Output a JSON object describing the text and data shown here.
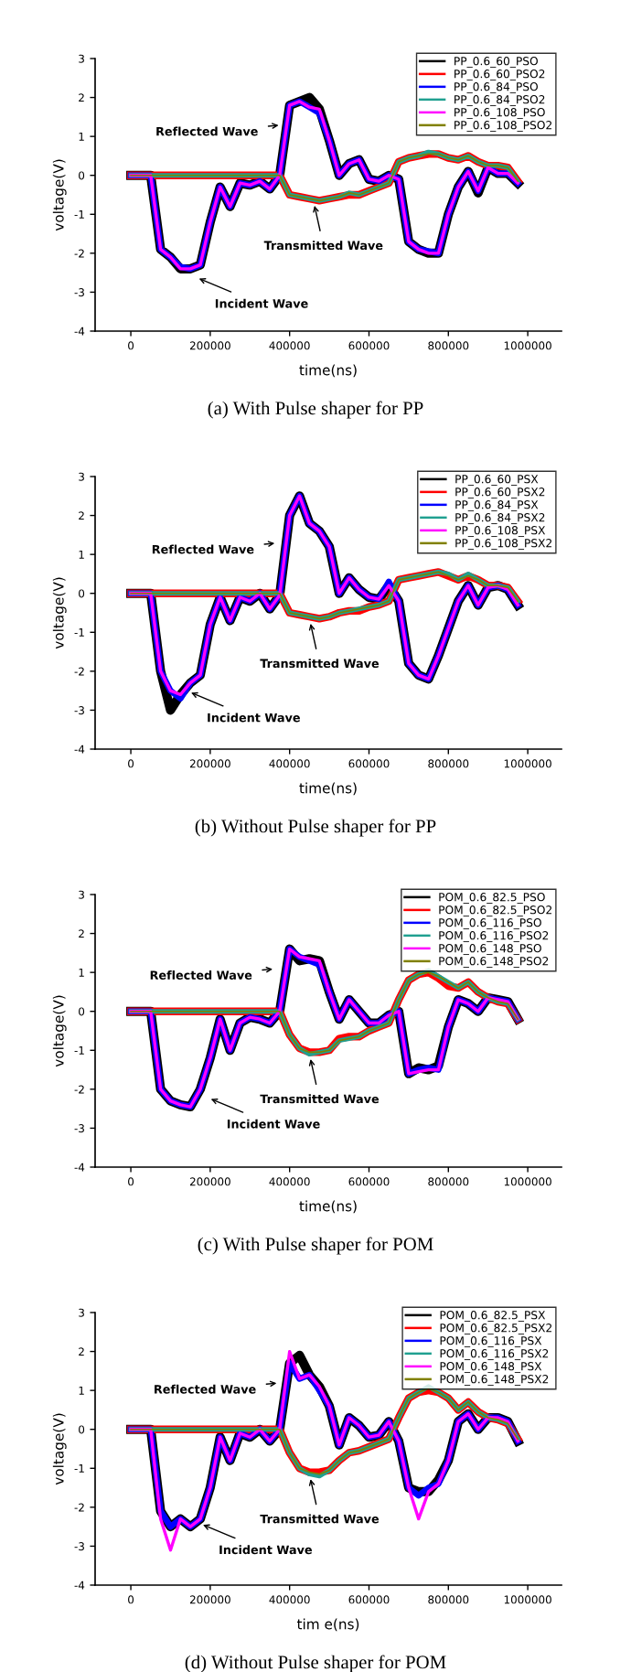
{
  "chart_data": [
    {
      "type": "line",
      "title": "(a) With Pulse shaper for PP",
      "xlabel": "time(ns)",
      "ylabel": "voltage(V)",
      "legend": "top right",
      "xlim": [
        -90000,
        1085000
      ],
      "ylim": [
        -4,
        3
      ],
      "xticks": [
        0,
        200000,
        400000,
        600000,
        800000,
        1000000
      ],
      "yticks": [
        -4,
        -3,
        -2,
        -1,
        0,
        1,
        2,
        3
      ],
      "x": [
        0,
        25000,
        50000,
        75000,
        100000,
        125000,
        150000,
        175000,
        200000,
        225000,
        250000,
        275000,
        300000,
        325000,
        350000,
        375000,
        400000,
        425000,
        450000,
        475000,
        500000,
        525000,
        550000,
        575000,
        600000,
        625000,
        650000,
        675000,
        700000,
        725000,
        750000,
        775000,
        800000,
        825000,
        850000,
        875000,
        900000,
        925000,
        950000,
        975000
      ],
      "annotations": [
        {
          "text": "Reflected Wave",
          "x": 385000,
          "y": 1.3
        },
        {
          "text": "Transmitted Wave",
          "x": 460000,
          "y": -0.65
        },
        {
          "text": "Incident Wave",
          "x": 160000,
          "y": -2.6
        }
      ],
      "series": [
        {
          "name": "PP_0.6_60_PSO",
          "color": "#000000",
          "values": [
            0,
            0,
            0,
            -1.9,
            -2.1,
            -2.4,
            -2.4,
            -2.3,
            -1.2,
            -0.3,
            -0.8,
            -0.2,
            -0.25,
            -0.15,
            -0.35,
            0.0,
            1.8,
            1.9,
            2.0,
            1.7,
            0.9,
            0.0,
            0.3,
            0.4,
            -0.1,
            -0.15,
            0.0,
            -0.1,
            -1.7,
            -1.9,
            -2.0,
            -2.0,
            -1.0,
            -0.3,
            0.1,
            -0.45,
            0.2,
            0.05,
            0.05,
            -0.2
          ]
        },
        {
          "name": "PP_0.6_60_PSO2",
          "color": "#ff0000",
          "values": [
            0,
            0,
            0,
            0,
            0,
            0,
            0,
            0,
            0,
            0,
            0,
            0,
            0,
            0,
            0,
            0,
            -0.5,
            -0.55,
            -0.6,
            -0.65,
            -0.6,
            -0.55,
            -0.5,
            -0.5,
            -0.4,
            -0.3,
            -0.2,
            0.35,
            0.45,
            0.5,
            0.55,
            0.55,
            0.45,
            0.4,
            0.5,
            0.35,
            0.25,
            0.25,
            0.2,
            -0.15
          ]
        },
        {
          "name": "PP_0.6_84_PSO",
          "color": "#0000ff",
          "values": [
            0,
            0,
            0,
            -1.9,
            -2.1,
            -2.35,
            -2.4,
            -2.3,
            -1.2,
            -0.3,
            -0.8,
            -0.2,
            -0.25,
            -0.15,
            -0.35,
            0.0,
            1.8,
            1.9,
            1.75,
            1.6,
            0.9,
            0.0,
            0.3,
            0.4,
            -0.1,
            -0.15,
            0.0,
            -0.1,
            -1.7,
            -1.9,
            -1.95,
            -2.0,
            -1.0,
            -0.3,
            0.1,
            -0.4,
            0.2,
            0.05,
            0.05,
            -0.2
          ]
        },
        {
          "name": "PP_0.6_84_PSO2",
          "color": "#20a090",
          "values": [
            0,
            0,
            0,
            0,
            0,
            0,
            0,
            0,
            0,
            0,
            0,
            0,
            0,
            0,
            0,
            0,
            -0.5,
            -0.55,
            -0.6,
            -0.65,
            -0.6,
            -0.55,
            -0.45,
            -0.5,
            -0.4,
            -0.3,
            -0.2,
            0.35,
            0.45,
            0.5,
            0.6,
            0.55,
            0.45,
            0.4,
            0.5,
            0.35,
            0.25,
            0.25,
            0.2,
            -0.15
          ]
        },
        {
          "name": "PP_0.6_108_PSO",
          "color": "#ff00ff",
          "values": [
            0,
            0,
            0,
            -1.9,
            -2.1,
            -2.4,
            -2.4,
            -2.3,
            -1.2,
            -0.3,
            -0.8,
            -0.2,
            -0.25,
            -0.15,
            -0.35,
            0.0,
            1.8,
            1.9,
            1.75,
            1.7,
            0.9,
            0.0,
            0.3,
            0.4,
            -0.1,
            -0.15,
            0.0,
            -0.1,
            -1.7,
            -1.9,
            -2.0,
            -2.0,
            -1.0,
            -0.3,
            0.1,
            -0.4,
            0.2,
            0.05,
            0.05,
            -0.2
          ]
        },
        {
          "name": "PP_0.6_108_PSO2",
          "color": "#808000",
          "values": [
            0,
            0,
            0,
            0,
            0,
            0,
            0,
            0,
            0,
            0,
            0,
            0,
            0,
            0,
            0,
            0,
            -0.5,
            -0.55,
            -0.6,
            -0.65,
            -0.6,
            -0.55,
            -0.45,
            -0.5,
            -0.4,
            -0.3,
            -0.2,
            0.35,
            0.45,
            0.5,
            0.55,
            0.55,
            0.45,
            0.4,
            0.5,
            0.35,
            0.25,
            0.25,
            0.2,
            -0.15
          ]
        }
      ]
    },
    {
      "type": "line",
      "title": "(b) Without Pulse shaper for PP",
      "xlabel": "time(ns)",
      "ylabel": "voltage(V)",
      "legend": "top right",
      "xlim": [
        -90000,
        1085000
      ],
      "ylim": [
        -4,
        3
      ],
      "xticks": [
        0,
        200000,
        400000,
        600000,
        800000,
        1000000
      ],
      "yticks": [
        -4,
        -3,
        -2,
        -1,
        0,
        1,
        2,
        3
      ],
      "x": [
        0,
        25000,
        50000,
        75000,
        100000,
        125000,
        150000,
        175000,
        200000,
        225000,
        250000,
        275000,
        300000,
        325000,
        350000,
        375000,
        400000,
        425000,
        450000,
        475000,
        500000,
        525000,
        550000,
        575000,
        600000,
        625000,
        650000,
        675000,
        700000,
        725000,
        750000,
        775000,
        800000,
        825000,
        850000,
        875000,
        900000,
        925000,
        950000,
        975000
      ],
      "annotations": [
        {
          "text": "Reflected Wave",
          "x": 375000,
          "y": 1.3
        },
        {
          "text": "Transmitted Wave",
          "x": 450000,
          "y": -0.65
        },
        {
          "text": "Incident Wave",
          "x": 140000,
          "y": -2.5
        }
      ],
      "series": [
        {
          "name": "PP_0.6_60_PSX",
          "color": "#000000",
          "values": [
            0,
            0,
            0,
            -2.0,
            -3.0,
            -2.6,
            -2.3,
            -2.1,
            -0.8,
            -0.1,
            -0.7,
            -0.1,
            -0.2,
            0.0,
            -0.4,
            -0.05,
            2.0,
            2.5,
            1.8,
            1.6,
            1.2,
            0.0,
            0.4,
            0.1,
            -0.1,
            -0.15,
            0.2,
            -0.2,
            -1.8,
            -2.1,
            -2.2,
            -1.6,
            -0.9,
            -0.2,
            0.2,
            -0.3,
            0.15,
            0.2,
            0.1,
            -0.3
          ]
        },
        {
          "name": "PP_0.6_60_PSX2",
          "color": "#ff0000",
          "values": [
            0,
            0,
            0,
            0,
            0,
            0,
            0,
            0,
            0,
            0,
            0,
            0,
            0,
            0,
            0,
            0,
            -0.5,
            -0.55,
            -0.6,
            -0.65,
            -0.6,
            -0.5,
            -0.45,
            -0.45,
            -0.35,
            -0.3,
            -0.2,
            0.35,
            0.4,
            0.45,
            0.5,
            0.55,
            0.45,
            0.35,
            0.45,
            0.35,
            0.2,
            0.2,
            0.15,
            -0.2
          ]
        },
        {
          "name": "PP_0.6_84_PSX",
          "color": "#0000ff",
          "values": [
            0,
            0,
            0,
            -2.0,
            -2.5,
            -2.7,
            -2.3,
            -2.1,
            -0.8,
            -0.1,
            -0.7,
            -0.1,
            -0.2,
            0.0,
            -0.4,
            -0.05,
            2.0,
            2.5,
            1.8,
            1.6,
            1.2,
            0.0,
            0.4,
            0.1,
            -0.1,
            -0.15,
            0.3,
            -0.2,
            -1.8,
            -2.1,
            -2.2,
            -1.6,
            -0.9,
            -0.2,
            0.2,
            -0.3,
            0.15,
            0.2,
            0.1,
            -0.3
          ]
        },
        {
          "name": "PP_0.6_84_PSX2",
          "color": "#20a090",
          "values": [
            0,
            0,
            0,
            0,
            0,
            0,
            0,
            0,
            0,
            0,
            0,
            0,
            0,
            0,
            0,
            0,
            -0.5,
            -0.55,
            -0.6,
            -0.65,
            -0.6,
            -0.5,
            -0.45,
            -0.4,
            -0.35,
            -0.3,
            -0.2,
            0.35,
            0.4,
            0.45,
            0.5,
            0.55,
            0.5,
            0.35,
            0.5,
            0.35,
            0.2,
            0.2,
            0.15,
            -0.2
          ]
        },
        {
          "name": "PP_0.6_108_PSX",
          "color": "#ff00ff",
          "values": [
            0,
            0,
            0,
            -2.0,
            -2.5,
            -2.6,
            -2.3,
            -2.1,
            -0.8,
            -0.1,
            -0.7,
            -0.1,
            -0.2,
            0.0,
            -0.4,
            -0.05,
            2.0,
            2.5,
            1.8,
            1.6,
            1.2,
            0.0,
            0.4,
            0.1,
            -0.1,
            -0.15,
            0.2,
            -0.2,
            -1.8,
            -2.1,
            -2.2,
            -1.6,
            -0.9,
            -0.2,
            0.2,
            -0.3,
            0.15,
            0.2,
            0.1,
            -0.3
          ]
        },
        {
          "name": "PP_0.6_108_PSX2",
          "color": "#808000",
          "values": [
            0,
            0,
            0,
            0,
            0,
            0,
            0,
            0,
            0,
            0,
            0,
            0,
            0,
            0,
            0,
            0,
            -0.5,
            -0.55,
            -0.6,
            -0.65,
            -0.6,
            -0.5,
            -0.45,
            -0.4,
            -0.35,
            -0.3,
            -0.2,
            0.35,
            0.4,
            0.45,
            0.5,
            0.55,
            0.45,
            0.35,
            0.45,
            0.35,
            0.2,
            0.2,
            0.15,
            -0.2
          ]
        }
      ]
    },
    {
      "type": "line",
      "title": "(c) With Pulse shaper for POM",
      "xlabel": "time(ns)",
      "ylabel": "voltage(V)",
      "legend": "top right",
      "xlim": [
        -90000,
        1085000
      ],
      "ylim": [
        -4,
        3
      ],
      "xticks": [
        0,
        200000,
        400000,
        600000,
        800000,
        1000000
      ],
      "yticks": [
        -4,
        -3,
        -2,
        -1,
        0,
        1,
        2,
        3
      ],
      "x": [
        0,
        25000,
        50000,
        75000,
        100000,
        125000,
        150000,
        175000,
        200000,
        225000,
        250000,
        275000,
        300000,
        325000,
        350000,
        375000,
        400000,
        425000,
        450000,
        475000,
        500000,
        525000,
        550000,
        575000,
        600000,
        625000,
        650000,
        675000,
        700000,
        725000,
        750000,
        775000,
        800000,
        825000,
        850000,
        875000,
        900000,
        925000,
        950000,
        975000
      ],
      "annotations": [
        {
          "text": "Reflected Wave",
          "x": 370000,
          "y": 1.1
        },
        {
          "text": "Transmitted Wave",
          "x": 450000,
          "y": -1.1
        },
        {
          "text": "Incident Wave",
          "x": 190000,
          "y": -2.2
        }
      ],
      "series": [
        {
          "name": "POM_0.6_82.5_PSO",
          "color": "#000000",
          "values": [
            0,
            0,
            0,
            -2.0,
            -2.3,
            -2.4,
            -2.45,
            -2.0,
            -1.2,
            -0.2,
            -1.0,
            -0.3,
            -0.15,
            -0.2,
            -0.3,
            0.0,
            1.6,
            1.3,
            1.35,
            1.3,
            0.5,
            -0.2,
            0.3,
            0.0,
            -0.3,
            -0.3,
            -0.1,
            0.0,
            -1.6,
            -1.45,
            -1.5,
            -1.4,
            -0.4,
            0.3,
            0.2,
            0.0,
            0.35,
            0.3,
            0.25,
            -0.2
          ]
        },
        {
          "name": "POM_0.6_82.5_PSO2",
          "color": "#ff0000",
          "values": [
            0,
            0,
            0,
            0,
            0,
            0,
            0,
            0,
            0,
            0,
            0,
            0,
            0,
            0,
            0,
            0,
            -0.6,
            -0.95,
            -1.05,
            -1.05,
            -1.0,
            -0.7,
            -0.65,
            -0.65,
            -0.5,
            -0.4,
            -0.3,
            0.3,
            0.8,
            0.95,
            1.0,
            0.85,
            0.65,
            0.6,
            0.75,
            0.5,
            0.35,
            0.25,
            0.2,
            -0.2
          ]
        },
        {
          "name": "POM_0.6_116_PSO",
          "color": "#0000ff",
          "values": [
            0,
            0,
            0,
            -2.0,
            -2.3,
            -2.4,
            -2.45,
            -2.0,
            -1.2,
            -0.2,
            -1.0,
            -0.3,
            -0.15,
            -0.2,
            -0.3,
            0.0,
            1.6,
            1.4,
            1.3,
            1.2,
            0.5,
            -0.2,
            0.3,
            0.0,
            -0.3,
            -0.3,
            -0.1,
            0.0,
            -1.6,
            -1.5,
            -1.45,
            -1.5,
            -0.4,
            0.3,
            0.2,
            0.0,
            0.35,
            0.3,
            0.25,
            -0.2
          ]
        },
        {
          "name": "POM_0.6_116_PSO2",
          "color": "#20a090",
          "values": [
            0,
            0,
            0,
            0,
            0,
            0,
            0,
            0,
            0,
            0,
            0,
            0,
            0,
            0,
            0,
            0,
            -0.6,
            -0.95,
            -1.1,
            -1.05,
            -1.0,
            -0.75,
            -0.7,
            -0.65,
            -0.5,
            -0.4,
            -0.3,
            0.3,
            0.8,
            0.95,
            1.05,
            0.9,
            0.75,
            0.6,
            0.75,
            0.5,
            0.35,
            0.25,
            0.2,
            -0.2
          ]
        },
        {
          "name": "POM_0.6_148_PSO",
          "color": "#ff00ff",
          "values": [
            0,
            0,
            0,
            -2.0,
            -2.3,
            -2.4,
            -2.45,
            -2.0,
            -1.2,
            -0.2,
            -1.0,
            -0.3,
            -0.15,
            -0.2,
            -0.3,
            0.0,
            1.6,
            1.4,
            1.35,
            1.3,
            0.5,
            -0.2,
            0.3,
            0.0,
            -0.3,
            -0.3,
            -0.1,
            0.0,
            -1.6,
            -1.55,
            -1.5,
            -1.5,
            -0.4,
            0.3,
            0.2,
            0.0,
            0.35,
            0.3,
            0.25,
            -0.2
          ]
        },
        {
          "name": "POM_0.6_148_PSO2",
          "color": "#808000",
          "values": [
            0,
            0,
            0,
            0,
            0,
            0,
            0,
            0,
            0,
            0,
            0,
            0,
            0,
            0,
            0,
            0,
            -0.6,
            -0.95,
            -1.05,
            -1.05,
            -1.0,
            -0.75,
            -0.7,
            -0.65,
            -0.5,
            -0.4,
            -0.3,
            0.3,
            0.8,
            0.95,
            1.0,
            0.9,
            0.75,
            0.6,
            0.75,
            0.5,
            0.35,
            0.25,
            0.2,
            -0.2
          ]
        }
      ]
    },
    {
      "type": "line",
      "title": "(d) Without Pulse shaper for POM",
      "xlabel": "tim e(ns)",
      "ylabel": "voltage(V)",
      "legend": "top right",
      "xlim": [
        -90000,
        1085000
      ],
      "ylim": [
        -4,
        3
      ],
      "xticks": [
        0,
        200000,
        400000,
        600000,
        800000,
        1000000
      ],
      "yticks": [
        -4,
        -3,
        -2,
        -1,
        0,
        1,
        2,
        3
      ],
      "x": [
        0,
        25000,
        50000,
        75000,
        100000,
        125000,
        150000,
        175000,
        200000,
        225000,
        250000,
        275000,
        300000,
        325000,
        350000,
        375000,
        400000,
        425000,
        450000,
        475000,
        500000,
        525000,
        550000,
        575000,
        600000,
        625000,
        650000,
        675000,
        700000,
        725000,
        750000,
        775000,
        800000,
        825000,
        850000,
        875000,
        900000,
        925000,
        950000,
        975000
      ],
      "annotations": [
        {
          "text": "Reflected Wave",
          "x": 380000,
          "y": 1.2
        },
        {
          "text": "Transmitted Wave",
          "x": 450000,
          "y": -1.15
        },
        {
          "text": "Incident Wave",
          "x": 170000,
          "y": -2.4
        }
      ],
      "series": [
        {
          "name": "POM_0.6_82.5_PSX",
          "color": "#000000",
          "values": [
            0,
            0,
            0,
            -2.1,
            -2.5,
            -2.3,
            -2.5,
            -2.3,
            -1.5,
            -0.2,
            -0.8,
            -0.1,
            -0.2,
            0.0,
            -0.3,
            0.0,
            1.7,
            1.9,
            1.4,
            1.1,
            0.6,
            -0.4,
            0.3,
            0.1,
            -0.2,
            -0.15,
            0.2,
            -0.3,
            -1.5,
            -1.6,
            -1.6,
            -1.3,
            -0.8,
            0.2,
            0.4,
            0.0,
            0.3,
            0.3,
            0.2,
            -0.3
          ]
        },
        {
          "name": "POM_0.6_82.5_PSX2",
          "color": "#ff0000",
          "values": [
            0,
            0,
            0,
            0,
            0,
            0,
            0,
            0,
            0,
            0,
            0,
            0,
            0,
            0,
            0,
            0,
            -0.6,
            -1.0,
            -1.1,
            -1.1,
            -1.05,
            -0.8,
            -0.6,
            -0.55,
            -0.45,
            -0.35,
            -0.25,
            0.3,
            0.8,
            0.95,
            1.0,
            0.95,
            0.8,
            0.5,
            0.7,
            0.45,
            0.3,
            0.25,
            0.15,
            -0.25
          ]
        },
        {
          "name": "POM_0.6_116_PSX",
          "color": "#0000ff",
          "values": [
            0,
            0,
            0,
            -2.1,
            -2.5,
            -2.3,
            -2.5,
            -2.3,
            -1.5,
            -0.2,
            -0.8,
            -0.1,
            -0.2,
            0.0,
            -0.3,
            0.0,
            1.7,
            1.3,
            1.4,
            1.0,
            0.6,
            -0.4,
            0.3,
            0.1,
            -0.2,
            -0.15,
            0.2,
            -0.3,
            -1.5,
            -1.7,
            -1.5,
            -1.4,
            -0.8,
            0.2,
            0.4,
            0.0,
            0.3,
            0.3,
            0.2,
            -0.3
          ]
        },
        {
          "name": "POM_0.6_116_PSX2",
          "color": "#20a090",
          "values": [
            0,
            0,
            0,
            0,
            0,
            0,
            0,
            0,
            0,
            0,
            0,
            0,
            0,
            0,
            0,
            0,
            -0.6,
            -1.0,
            -1.15,
            -1.2,
            -1.05,
            -0.8,
            -0.6,
            -0.55,
            -0.45,
            -0.35,
            -0.25,
            0.3,
            0.8,
            0.95,
            1.1,
            0.95,
            0.8,
            0.5,
            0.7,
            0.45,
            0.3,
            0.25,
            0.15,
            -0.25
          ]
        },
        {
          "name": "POM_0.6_148_PSX",
          "color": "#ff00ff",
          "values": [
            0,
            0,
            0,
            -2.3,
            -3.1,
            -2.3,
            -2.5,
            -2.3,
            -1.5,
            -0.2,
            -0.8,
            -0.1,
            -0.2,
            0.0,
            -0.3,
            0.0,
            2.0,
            1.3,
            1.4,
            1.1,
            0.6,
            -0.4,
            0.3,
            0.1,
            -0.2,
            -0.15,
            0.2,
            -0.3,
            -1.5,
            -2.3,
            -1.6,
            -1.4,
            -0.8,
            0.2,
            0.4,
            0.0,
            0.3,
            0.3,
            0.2,
            -0.3
          ]
        },
        {
          "name": "POM_0.6_148_PSX2",
          "color": "#808000",
          "values": [
            0,
            0,
            0,
            0,
            0,
            0,
            0,
            0,
            0,
            0,
            0,
            0,
            0,
            0,
            0,
            0,
            -0.6,
            -1.0,
            -1.1,
            -1.15,
            -1.05,
            -0.8,
            -0.6,
            -0.55,
            -0.45,
            -0.35,
            -0.25,
            0.3,
            0.8,
            0.95,
            1.05,
            0.95,
            0.8,
            0.5,
            0.7,
            0.45,
            0.3,
            0.25,
            0.15,
            -0.25
          ]
        }
      ]
    }
  ]
}
